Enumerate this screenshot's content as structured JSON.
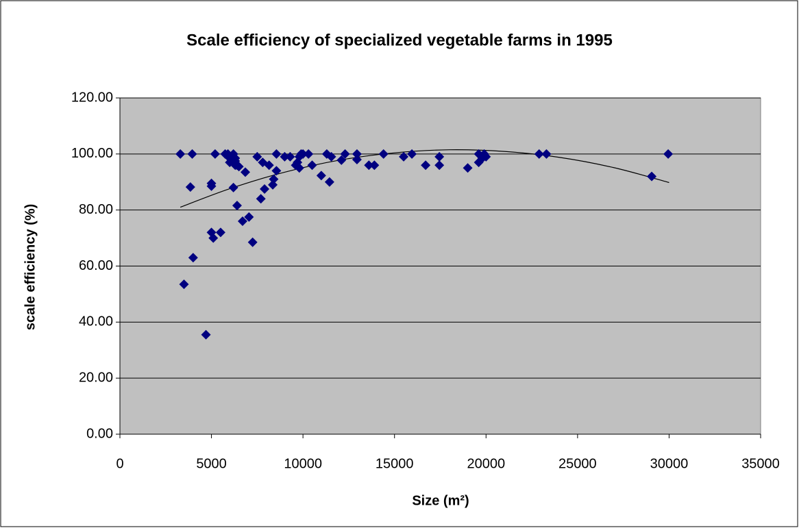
{
  "chart_data": {
    "type": "scatter",
    "title": "Scale efficiency of specialized vegetable farms in 1995",
    "x_label": "Size (m²)",
    "y_label": "scale efficiency (%)",
    "x": [
      3300,
      3500,
      3950,
      3850,
      4000,
      4700,
      5000,
      5000,
      5000,
      5100,
      5200,
      5500,
      5750,
      5900,
      6000,
      6000,
      6200,
      6300,
      6200,
      6300,
      6300,
      6400,
      6500,
      6400,
      6700,
      6850,
      7050,
      7250,
      7500,
      7700,
      7800,
      7900,
      8150,
      8350,
      8400,
      8550,
      8550,
      9000,
      9300,
      9600,
      9700,
      9800,
      9800,
      9900,
      10000,
      10300,
      10500,
      11000,
      11300,
      11450,
      11550,
      12100,
      12300,
      12950,
      12950,
      13600,
      13900,
      14400,
      15500,
      15950,
      16700,
      17450,
      17450,
      19000,
      19600,
      19600,
      19800,
      19900,
      20000,
      22900,
      23300,
      29050,
      29950
    ],
    "values": [
      100,
      53.5,
      100,
      88.2,
      63,
      35.5,
      89.5,
      88.5,
      72,
      70,
      100,
      72,
      100,
      100,
      98.5,
      97,
      100,
      97.5,
      88,
      96,
      98.5,
      96,
      95.5,
      81.6,
      76,
      93.5,
      77.5,
      68.5,
      99,
      84,
      97,
      87.5,
      96,
      89,
      91,
      94,
      100,
      99,
      99,
      96,
      97,
      95,
      99,
      100,
      100,
      100,
      96,
      92.3,
      100,
      90,
      99,
      97.8,
      100,
      100,
      98,
      96,
      96,
      100,
      99,
      100,
      96,
      99,
      96,
      95,
      100,
      97,
      98.5,
      100,
      99,
      100,
      100,
      92,
      100
    ],
    "color": "#000080",
    "trendline": {
      "x": [
        3300,
        6000,
        9000,
        12000,
        15000,
        18000,
        21000,
        24000,
        27000,
        30000
      ],
      "values": [
        81.0,
        87.6,
        93.5,
        97.8,
        100.4,
        101.5,
        100.9,
        98.8,
        95.1,
        89.8
      ],
      "color": "#000000"
    },
    "xlim": [
      0,
      35000
    ],
    "xticks": [
      0,
      5000,
      10000,
      15000,
      20000,
      25000,
      30000,
      35000
    ],
    "ylim": [
      0,
      120
    ],
    "yticks": [
      {
        "value": 0,
        "label": "0.00"
      },
      {
        "value": 20,
        "label": "20.00"
      },
      {
        "value": 40,
        "label": "40.00"
      },
      {
        "value": 60,
        "label": "60.00"
      },
      {
        "value": 80,
        "label": "80.00"
      },
      {
        "value": 100,
        "label": "100.00"
      },
      {
        "value": 120,
        "label": "120.00"
      }
    ],
    "grid": true,
    "plot_background": "#c0c0c0"
  }
}
